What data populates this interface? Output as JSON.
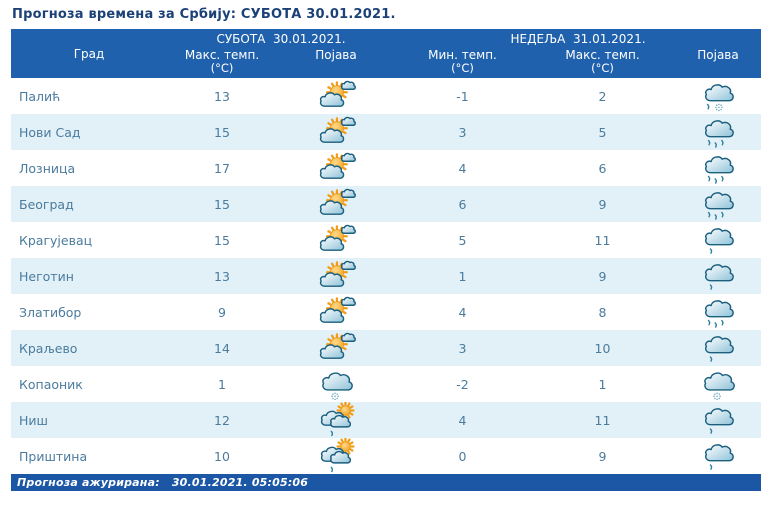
{
  "title": "Прогноза времена за Србију: СУБОТА  30.01.2021.",
  "table": {
    "city_label": "Град",
    "saturday_header": "СУБОТА  30.01.2021.",
    "sunday_header": "НЕДЕЉА  31.01.2021.",
    "columns": [
      {
        "key": "sat_max",
        "label": "Макс. темп.",
        "unit": "(°C)"
      },
      {
        "key": "sat_icon",
        "label": "Појава",
        "unit": ""
      },
      {
        "key": "sun_min",
        "label": "Мин. темп.",
        "unit": "(°C)"
      },
      {
        "key": "sun_max",
        "label": "Макс. темп.",
        "unit": "(°C)"
      },
      {
        "key": "sun_icon",
        "label": "Појава",
        "unit": ""
      }
    ],
    "rows": [
      {
        "city": "Палић",
        "sat_max": 13,
        "sat_icon": "sun-clouds",
        "sun_min": -1,
        "sun_max": 2,
        "sun_icon": "cloud-rain-snow"
      },
      {
        "city": "Нови Сад",
        "sat_max": 15,
        "sat_icon": "sun-clouds",
        "sun_min": 3,
        "sun_max": 5,
        "sun_icon": "cloud-rain"
      },
      {
        "city": "Лозница",
        "sat_max": 17,
        "sat_icon": "sun-clouds",
        "sun_min": 4,
        "sun_max": 6,
        "sun_icon": "cloud-rain"
      },
      {
        "city": "Београд",
        "sat_max": 15,
        "sat_icon": "sun-clouds",
        "sun_min": 6,
        "sun_max": 9,
        "sun_icon": "cloud-rain"
      },
      {
        "city": "Крагујевац",
        "sat_max": 15,
        "sat_icon": "sun-clouds",
        "sun_min": 5,
        "sun_max": 11,
        "sun_icon": "cloud-drizzle"
      },
      {
        "city": "Неготин",
        "sat_max": 13,
        "sat_icon": "sun-clouds",
        "sun_min": 1,
        "sun_max": 9,
        "sun_icon": "cloud-drizzle"
      },
      {
        "city": "Златибор",
        "sat_max": 9,
        "sat_icon": "sun-clouds",
        "sun_min": 4,
        "sun_max": 8,
        "sun_icon": "cloud-rain"
      },
      {
        "city": "Краљево",
        "sat_max": 14,
        "sat_icon": "sun-clouds",
        "sun_min": 3,
        "sun_max": 10,
        "sun_icon": "cloud-drizzle"
      },
      {
        "city": "Копаоник",
        "sat_max": 1,
        "sat_icon": "cloud-snow",
        "sun_min": -2,
        "sun_max": 1,
        "sun_icon": "cloud-snow"
      },
      {
        "city": "Ниш",
        "sat_max": 12,
        "sat_icon": "clouds-sun-drizzle",
        "sun_min": 4,
        "sun_max": 11,
        "sun_icon": "cloud-drizzle"
      },
      {
        "city": "Приштина",
        "sat_max": 10,
        "sat_icon": "clouds-sun-drizzle",
        "sun_min": 0,
        "sun_max": 9,
        "sun_icon": "cloud-drizzle"
      }
    ]
  },
  "footer": {
    "updated_label": "Прогноза ажурирана:",
    "updated_value": "30.01.2021.  05:05:06"
  },
  "colors": {
    "header_bg": "#2061ad",
    "footer_bg": "#1c57a6",
    "row_alt_bg": "#e2f1f8",
    "title_text": "#1c4177",
    "cell_text": "#4b7b9d",
    "sun_color": "#f09c12",
    "cloud_stroke": "#1a5f7e",
    "rain_color": "#2e81a0"
  }
}
